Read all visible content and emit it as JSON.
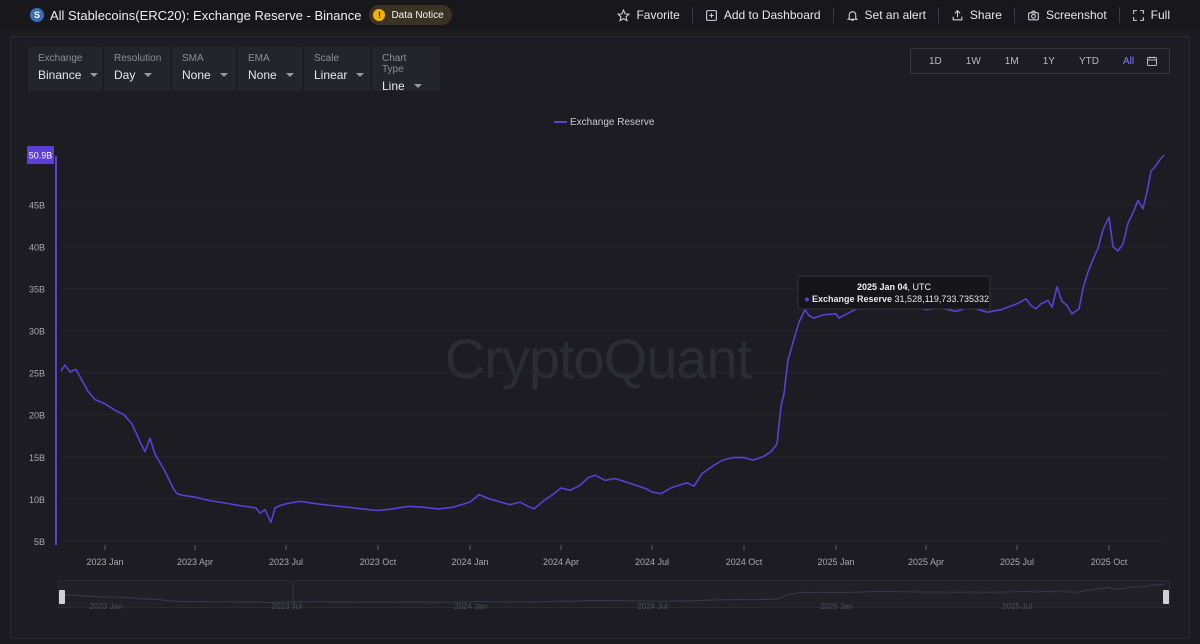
{
  "header": {
    "coin_icon_letter": "S",
    "title": "All Stablecoins(ERC20): Exchange Reserve - Binance",
    "notice_label": "Data Notice",
    "actions": [
      {
        "label": "Favorite",
        "icon": "star-icon"
      },
      {
        "label": "Add to Dashboard",
        "icon": "add-dashboard-icon"
      },
      {
        "label": "Set an alert",
        "icon": "bell-icon"
      },
      {
        "label": "Share",
        "icon": "share-icon"
      },
      {
        "label": "Screenshot",
        "icon": "camera-icon"
      },
      {
        "label": "Full",
        "icon": "fullscreen-icon"
      }
    ]
  },
  "controls": [
    {
      "label": "Exchange",
      "value": "Binance"
    },
    {
      "label": "Resolution",
      "value": "Day"
    },
    {
      "label": "SMA",
      "value": "None"
    },
    {
      "label": "EMA",
      "value": "None"
    },
    {
      "label": "Scale",
      "value": "Linear"
    },
    {
      "label": "Chart Type",
      "value": "Line"
    }
  ],
  "ranges": [
    {
      "label": "1D",
      "active": false
    },
    {
      "label": "1W",
      "active": false
    },
    {
      "label": "1M",
      "active": false
    },
    {
      "label": "1Y",
      "active": false
    },
    {
      "label": "YTD",
      "active": false
    },
    {
      "label": "All",
      "active": true
    }
  ],
  "watermark": "CryptoQuant",
  "colors": {
    "series": "#5b3fd6",
    "accent": "#8b7cff",
    "notice": "#f5b300"
  },
  "chart_data": {
    "type": "line",
    "legend_position": "top-center",
    "grid": true,
    "x_range": [
      "2022-11-18",
      "2025-11-27"
    ],
    "ylim": [
      4.5,
      51.5
    ],
    "y_ticks": [
      {
        "value": 5,
        "label": "5B"
      },
      {
        "value": 10,
        "label": "10B"
      },
      {
        "value": 15,
        "label": "15B"
      },
      {
        "value": 20,
        "label": "20B"
      },
      {
        "value": 25,
        "label": "25B"
      },
      {
        "value": 30,
        "label": "30B"
      },
      {
        "value": 35,
        "label": "35B"
      },
      {
        "value": 40,
        "label": "40B"
      },
      {
        "value": 45,
        "label": "45B"
      }
    ],
    "x_ticks": [
      {
        "date": "2023-01-01",
        "label": "2023 Jan"
      },
      {
        "date": "2023-04-01",
        "label": "2023 Apr"
      },
      {
        "date": "2023-07-01",
        "label": "2023 Jul"
      },
      {
        "date": "2023-10-01",
        "label": "2023 Oct"
      },
      {
        "date": "2024-01-01",
        "label": "2024 Jan"
      },
      {
        "date": "2024-04-01",
        "label": "2024 Apr"
      },
      {
        "date": "2024-07-01",
        "label": "2024 Jul"
      },
      {
        "date": "2024-10-01",
        "label": "2024 Oct"
      },
      {
        "date": "2025-01-01",
        "label": "2025 Jan"
      },
      {
        "date": "2025-04-01",
        "label": "2025 Apr"
      },
      {
        "date": "2025-07-01",
        "label": "2025 Jul"
      },
      {
        "date": "2025-10-01",
        "label": "2025 Oct"
      }
    ],
    "mini_labels": [
      {
        "date": "2023-01-01",
        "label": "2023 Jan"
      },
      {
        "date": "2023-07-01",
        "label": "2023 Jul"
      },
      {
        "date": "2024-01-01",
        "label": "2024 Jan"
      },
      {
        "date": "2024-07-01",
        "label": "2024 Jul"
      },
      {
        "date": "2025-01-01",
        "label": "2025 Jan"
      },
      {
        "date": "2025-07-01",
        "label": "2025 Jul"
      }
    ],
    "last_value_label": "50.9B",
    "tooltip": {
      "date": "2025 Jan 04",
      "tz": ", UTC",
      "series": "Exchange Reserve",
      "value": "31,528,119,733.735332"
    },
    "series": [
      {
        "name": "Exchange Reserve",
        "unit": "B",
        "points": [
          [
            "2022-11-18",
            25.2
          ],
          [
            "2022-11-22",
            25.9
          ],
          [
            "2022-11-27",
            25.1
          ],
          [
            "2022-12-03",
            25.4
          ],
          [
            "2022-12-08",
            24.3
          ],
          [
            "2022-12-15",
            22.8
          ],
          [
            "2022-12-22",
            21.8
          ],
          [
            "2023-01-01",
            21.3
          ],
          [
            "2023-01-10",
            20.6
          ],
          [
            "2023-01-20",
            20.0
          ],
          [
            "2023-01-28",
            18.9
          ],
          [
            "2023-02-05",
            16.8
          ],
          [
            "2023-02-10",
            15.6
          ],
          [
            "2023-02-15",
            17.2
          ],
          [
            "2023-02-20",
            15.3
          ],
          [
            "2023-03-01",
            13.5
          ],
          [
            "2023-03-10",
            11.3
          ],
          [
            "2023-03-14",
            10.6
          ],
          [
            "2023-03-20",
            10.4
          ],
          [
            "2023-04-01",
            10.2
          ],
          [
            "2023-04-15",
            9.8
          ],
          [
            "2023-05-01",
            9.5
          ],
          [
            "2023-05-15",
            9.2
          ],
          [
            "2023-06-01",
            8.9
          ],
          [
            "2023-06-05",
            8.3
          ],
          [
            "2023-06-10",
            8.7
          ],
          [
            "2023-06-16",
            7.2
          ],
          [
            "2023-06-20",
            8.9
          ],
          [
            "2023-06-25",
            9.2
          ],
          [
            "2023-07-01",
            9.4
          ],
          [
            "2023-07-15",
            9.7
          ],
          [
            "2023-08-01",
            9.4
          ],
          [
            "2023-08-15",
            9.2
          ],
          [
            "2023-09-01",
            9.0
          ],
          [
            "2023-09-15",
            8.8
          ],
          [
            "2023-10-01",
            8.6
          ],
          [
            "2023-10-15",
            8.8
          ],
          [
            "2023-11-01",
            9.1
          ],
          [
            "2023-11-15",
            9.0
          ],
          [
            "2023-12-01",
            8.8
          ],
          [
            "2023-12-15",
            9.0
          ],
          [
            "2024-01-01",
            9.6
          ],
          [
            "2024-01-10",
            10.5
          ],
          [
            "2024-01-20",
            10.0
          ],
          [
            "2024-02-01",
            9.6
          ],
          [
            "2024-02-10",
            9.3
          ],
          [
            "2024-02-20",
            9.6
          ],
          [
            "2024-02-28",
            9.1
          ],
          [
            "2024-03-05",
            8.8
          ],
          [
            "2024-03-15",
            9.8
          ],
          [
            "2024-03-25",
            10.6
          ],
          [
            "2024-04-01",
            11.3
          ],
          [
            "2024-04-10",
            11.0
          ],
          [
            "2024-04-20",
            11.6
          ],
          [
            "2024-04-28",
            12.5
          ],
          [
            "2024-05-05",
            12.8
          ],
          [
            "2024-05-15",
            12.2
          ],
          [
            "2024-05-25",
            12.4
          ],
          [
            "2024-06-05",
            12.0
          ],
          [
            "2024-06-15",
            11.6
          ],
          [
            "2024-06-25",
            11.2
          ],
          [
            "2024-07-01",
            10.8
          ],
          [
            "2024-07-10",
            10.6
          ],
          [
            "2024-07-20",
            11.3
          ],
          [
            "2024-07-28",
            11.6
          ],
          [
            "2024-08-05",
            11.9
          ],
          [
            "2024-08-12",
            11.5
          ],
          [
            "2024-08-20",
            13.0
          ],
          [
            "2024-09-01",
            14.0
          ],
          [
            "2024-09-10",
            14.6
          ],
          [
            "2024-09-20",
            14.9
          ],
          [
            "2024-10-01",
            14.9
          ],
          [
            "2024-10-10",
            14.6
          ],
          [
            "2024-10-20",
            15.0
          ],
          [
            "2024-10-28",
            15.6
          ],
          [
            "2024-11-03",
            16.5
          ],
          [
            "2024-11-07",
            21.0
          ],
          [
            "2024-11-10",
            22.5
          ],
          [
            "2024-11-14",
            26.5
          ],
          [
            "2024-11-20",
            29.0
          ],
          [
            "2024-11-25",
            31.0
          ],
          [
            "2024-12-01",
            32.5
          ],
          [
            "2024-12-05",
            31.8
          ],
          [
            "2024-12-10",
            31.5
          ],
          [
            "2024-12-20",
            31.9
          ],
          [
            "2025-01-01",
            32.0
          ],
          [
            "2025-01-04",
            31.5
          ],
          [
            "2025-01-15",
            32.2
          ],
          [
            "2025-01-25",
            32.8
          ],
          [
            "2025-02-01",
            33.3
          ],
          [
            "2025-02-15",
            33.2
          ],
          [
            "2025-03-01",
            33.5
          ],
          [
            "2025-03-15",
            33.0
          ],
          [
            "2025-04-01",
            32.5
          ],
          [
            "2025-04-15",
            32.7
          ],
          [
            "2025-05-01",
            32.3
          ],
          [
            "2025-05-15",
            32.8
          ],
          [
            "2025-06-01",
            32.2
          ],
          [
            "2025-06-15",
            32.5
          ],
          [
            "2025-07-01",
            33.2
          ],
          [
            "2025-07-10",
            33.8
          ],
          [
            "2025-07-15",
            33.0
          ],
          [
            "2025-07-20",
            32.6
          ],
          [
            "2025-07-25",
            33.2
          ],
          [
            "2025-08-01",
            33.6
          ],
          [
            "2025-08-05",
            32.8
          ],
          [
            "2025-08-10",
            35.2
          ],
          [
            "2025-08-15",
            33.5
          ],
          [
            "2025-08-20",
            33.0
          ],
          [
            "2025-08-25",
            32.0
          ],
          [
            "2025-09-01",
            32.6
          ],
          [
            "2025-09-05",
            35.0
          ],
          [
            "2025-09-10",
            37.0
          ],
          [
            "2025-09-15",
            38.5
          ],
          [
            "2025-09-20",
            39.8
          ],
          [
            "2025-09-25",
            42.0
          ],
          [
            "2025-10-01",
            43.5
          ],
          [
            "2025-10-05",
            40.0
          ],
          [
            "2025-10-10",
            39.5
          ],
          [
            "2025-10-15",
            40.3
          ],
          [
            "2025-10-20",
            42.8
          ],
          [
            "2025-10-25",
            44.0
          ],
          [
            "2025-10-30",
            45.5
          ],
          [
            "2025-11-04",
            44.5
          ],
          [
            "2025-11-08",
            46.5
          ],
          [
            "2025-11-12",
            49.0
          ],
          [
            "2025-11-16",
            49.5
          ],
          [
            "2025-11-20",
            50.2
          ],
          [
            "2025-11-25",
            50.9
          ]
        ]
      }
    ]
  }
}
